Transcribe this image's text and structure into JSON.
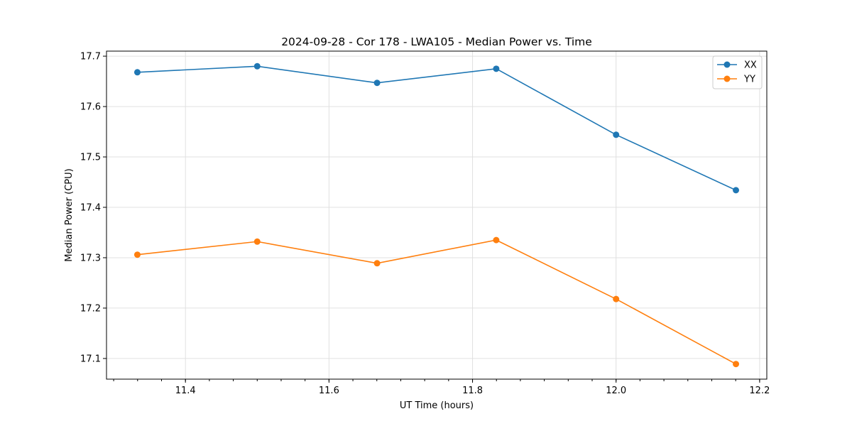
{
  "chart_data": {
    "type": "line",
    "title": "2024-09-28 - Cor 178 - LWA105 - Median Power vs. Time",
    "xlabel": "UT Time (hours)",
    "ylabel": "Median Power (CPU)",
    "xlim": [
      11.29,
      12.21
    ],
    "ylim": [
      17.059,
      17.71
    ],
    "xticks": [
      11.4,
      11.6,
      11.8,
      12.0,
      12.2
    ],
    "xtick_labels": [
      "11.4",
      "11.6",
      "11.8",
      "12.0",
      "12.2"
    ],
    "yticks": [
      17.1,
      17.2,
      17.3,
      17.4,
      17.5,
      17.6,
      17.7
    ],
    "ytick_labels": [
      "17.1",
      "17.2",
      "17.3",
      "17.4",
      "17.5",
      "17.6",
      "17.7"
    ],
    "x_minor_step": 0.0333333,
    "grid": true,
    "legend_position": "top-right",
    "x": [
      11.333,
      11.5,
      11.667,
      11.833,
      12.0,
      12.167
    ],
    "series": [
      {
        "name": "XX",
        "color": "#1f77b4",
        "values": [
          17.668,
          17.68,
          17.647,
          17.675,
          17.544,
          17.434
        ]
      },
      {
        "name": "YY",
        "color": "#ff7f0e",
        "values": [
          17.306,
          17.332,
          17.289,
          17.335,
          17.218,
          17.089
        ]
      }
    ]
  }
}
